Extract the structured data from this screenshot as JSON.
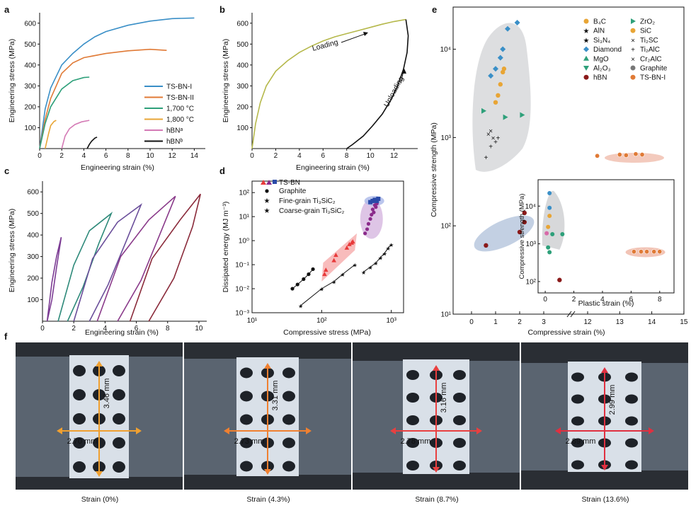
{
  "chart_data": [
    {
      "panel": "a",
      "type": "line",
      "xlabel": "Engineering strain (%)",
      "ylabel": "Engineering stress (MPa)",
      "xlim": [
        0,
        15
      ],
      "ylim": [
        0,
        650
      ],
      "xticks": [
        "0",
        "2",
        "4",
        "6",
        "8",
        "10",
        "12",
        "14"
      ],
      "yticks": [
        "100",
        "200",
        "300",
        "400",
        "500",
        "600"
      ],
      "legend_position": "center-right",
      "series": [
        {
          "name": "TS-BN-I",
          "color": "#3a8fc7",
          "x": [
            0,
            0.5,
            1,
            2,
            3,
            4,
            5,
            6,
            8,
            10,
            12,
            14
          ],
          "y": [
            0,
            190,
            290,
            400,
            455,
            500,
            535,
            560,
            590,
            610,
            622,
            625
          ]
        },
        {
          "name": "TS-BN-II",
          "color": "#e07a36",
          "x": [
            0,
            0.5,
            1,
            2,
            3,
            4,
            6,
            8,
            10,
            11.5
          ],
          "y": [
            0,
            140,
            240,
            360,
            410,
            435,
            455,
            468,
            475,
            470
          ]
        },
        {
          "name": "1,700 °C",
          "color": "#2ea07a",
          "x": [
            0,
            0.5,
            1,
            2,
            3,
            4,
            4.5
          ],
          "y": [
            0,
            120,
            200,
            285,
            325,
            340,
            342
          ]
        },
        {
          "name": "1,800 °C",
          "color": "#e8a535",
          "x": [
            0.5,
            0.8,
            1,
            1.3,
            1.5
          ],
          "y": [
            0,
            70,
            110,
            130,
            135
          ]
        },
        {
          "name": "hBNᵃ",
          "color": "#d47ab5",
          "x": [
            2,
            2.3,
            2.7,
            3.2,
            3.8,
            4.5
          ],
          "y": [
            0,
            60,
            95,
            115,
            128,
            135
          ]
        },
        {
          "name": "hBNᵇ",
          "color": "#111111",
          "x": [
            4.3,
            4.5,
            4.7,
            5,
            5.2
          ],
          "y": [
            0,
            20,
            35,
            50,
            55
          ]
        }
      ]
    },
    {
      "panel": "b",
      "type": "line",
      "xlabel": "Engineering strain (%)",
      "ylabel": "Engineering stress (MPa)",
      "xlim": [
        0,
        14
      ],
      "ylim": [
        0,
        650
      ],
      "xticks": [
        "0",
        "2",
        "4",
        "6",
        "8",
        "10",
        "12"
      ],
      "yticks": [
        "100",
        "200",
        "300",
        "400",
        "500",
        "600"
      ],
      "annotations": [
        "Loading",
        "Unloading"
      ],
      "series": [
        {
          "name": "",
          "color": "#b5b84a",
          "x": [
            0,
            0.3,
            0.7,
            1.2,
            2,
            3,
            4,
            5,
            6,
            7,
            8,
            9,
            10,
            11,
            12,
            13
          ],
          "y": [
            0,
            120,
            220,
            300,
            370,
            420,
            460,
            490,
            515,
            535,
            550,
            565,
            580,
            595,
            608,
            618
          ]
        },
        {
          "name": "",
          "color": "#111111",
          "x": [
            13,
            13.2,
            13.1,
            12.8,
            12.3,
            11.7,
            11,
            10.2,
            9.4,
            8.5,
            8
          ],
          "y": [
            618,
            540,
            460,
            380,
            300,
            230,
            165,
            110,
            60,
            20,
            0
          ]
        }
      ]
    },
    {
      "panel": "c",
      "type": "line",
      "xlabel": "Engineering strain (%)",
      "ylabel": "Engineering stress (MPa)",
      "xlim": [
        0,
        10.5
      ],
      "ylim": [
        0,
        650
      ],
      "xticks": [
        "0",
        "2",
        "4",
        "6",
        "8",
        "10"
      ],
      "yticks": [
        "100",
        "200",
        "300",
        "400",
        "500",
        "600"
      ],
      "series": [
        {
          "name": "",
          "color": "#7b3b93",
          "x": [
            0.3,
            0.6,
            0.9,
            1.2,
            0.9,
            0.6,
            0.3
          ],
          "y": [
            0,
            180,
            300,
            390,
            250,
            100,
            0
          ]
        },
        {
          "name": "",
          "color": "#2e8a7a",
          "x": [
            1.0,
            2.0,
            3.0,
            4.4,
            3.6,
            2.6,
            1.6
          ],
          "y": [
            0,
            260,
            420,
            500,
            360,
            160,
            0
          ]
        },
        {
          "name": "",
          "color": "#6a4e9a",
          "x": [
            2.0,
            3.2,
            4.8,
            6.3,
            5.4,
            4.2,
            3.0
          ],
          "y": [
            0,
            290,
            460,
            540,
            380,
            170,
            0
          ]
        },
        {
          "name": "",
          "color": "#8a3a8a",
          "x": [
            3.5,
            5.0,
            6.8,
            8.5,
            7.6,
            6.3,
            4.8
          ],
          "y": [
            0,
            300,
            470,
            580,
            420,
            190,
            0
          ]
        },
        {
          "name": "",
          "color": "#8a2a3a",
          "x": [
            5.6,
            7.0,
            8.8,
            10.1,
            9.6,
            8.4,
            6.8
          ],
          "y": [
            0,
            290,
            470,
            590,
            440,
            200,
            0
          ]
        }
      ]
    },
    {
      "panel": "d",
      "type": "scatter",
      "xlabel": "Compressive stress (MPa)",
      "ylabel": "Dissipated energy (MJ m⁻³)",
      "xscale": "log",
      "yscale": "log",
      "xlim": [
        10,
        1500
      ],
      "ylim": [
        0.001,
        300
      ],
      "xticks": [
        "10¹",
        "10²",
        "10³"
      ],
      "yticks": [
        "10⁻³",
        "10⁻²",
        "10⁻¹",
        "10⁰",
        "10¹",
        "10²"
      ],
      "legend": [
        "TS-BN",
        "Graphite",
        "Fine-grain Ti₃SiC₂",
        "Coarse-grain Ti₃SiC₂"
      ],
      "series": [
        {
          "name": "TS-BN",
          "color": "#e83a3a",
          "marker": "triangle",
          "x": [
            110,
            115,
            150,
            160,
            230,
            250,
            270,
            280
          ],
          "y": [
            0.04,
            0.06,
            0.15,
            0.25,
            0.5,
            0.7,
            0.8,
            0.9
          ]
        },
        {
          "name": "TS-BN",
          "color": "#8a2a8a",
          "marker": "circle",
          "x": [
            420,
            450,
            470,
            500,
            520,
            540,
            560,
            580,
            600,
            620
          ],
          "y": [
            2,
            3,
            5,
            8,
            12,
            20,
            15,
            30,
            25,
            35
          ]
        },
        {
          "name": "TS-BN",
          "color": "#2a4aa8",
          "marker": "square",
          "x": [
            500,
            540,
            580,
            620,
            650
          ],
          "y": [
            40,
            45,
            50,
            45,
            55
          ]
        },
        {
          "name": "Graphite",
          "color": "#111111",
          "marker": "circle",
          "x": [
            38,
            45,
            55,
            65,
            75
          ],
          "y": [
            0.01,
            0.015,
            0.025,
            0.04,
            0.065
          ]
        },
        {
          "name": "Fine-grain Ti₃SiC₂",
          "color": "#111111",
          "marker": "star",
          "x": [
            50,
            100,
            150,
            200,
            300
          ],
          "y": [
            0.002,
            0.01,
            0.02,
            0.04,
            0.1
          ]
        },
        {
          "name": "Coarse-grain Ti₃SiC₂",
          "color": "#111111",
          "marker": "star",
          "x": [
            400,
            500,
            600,
            700,
            800,
            900,
            1000
          ],
          "y": [
            0.05,
            0.08,
            0.12,
            0.2,
            0.3,
            0.5,
            0.7
          ]
        }
      ]
    },
    {
      "panel": "e",
      "type": "scatter",
      "xlabel": "Compressive strain (%)",
      "ylabel": "Compressive strength (MPa)",
      "yscale": "log",
      "xlim": [
        0,
        15
      ],
      "ylim": [
        10,
        30000
      ],
      "xticks": [
        "0",
        "1",
        "2",
        "3",
        "12",
        "13",
        "14",
        "15"
      ],
      "yticks": [
        "10¹",
        "10²",
        "10³",
        "10⁴"
      ],
      "legend": [
        "B₄C",
        "AlN",
        "Si₃N₄",
        "Diamond",
        "MgO",
        "Al₂O₃",
        "hBN",
        "ZrO₂",
        "SiC",
        "Ti₂SC",
        "Ti₂AlC",
        "Cr₂AlC",
        "Graphite",
        "TS-BN-I"
      ],
      "series": [
        {
          "name": "Diamond",
          "color": "#3a8fc7",
          "x": [
            0.8,
            1.0,
            1.2,
            1.3,
            1.5,
            1.9
          ],
          "y": [
            5000,
            6000,
            8000,
            10000,
            17000,
            20000
          ]
        },
        {
          "name": "B₄C",
          "color": "#e8a535",
          "x": [
            1.0,
            1.1,
            1.2,
            1.3,
            1.35
          ],
          "y": [
            2500,
            3000,
            4000,
            5500,
            6000
          ]
        },
        {
          "name": "ZrO₂",
          "color": "#2ea07a",
          "x": [
            0.5,
            1.4,
            2.1
          ],
          "y": [
            2000,
            1700,
            1800
          ]
        },
        {
          "name": "Ti₂AlC",
          "color": "#2ea07a",
          "x": [
            0.6,
            0.8,
            1.0,
            1.1
          ],
          "y": [
            600,
            800,
            900,
            1000
          ]
        },
        {
          "name": "Cr₂AlC",
          "color": "#555555",
          "x": [
            0.7,
            0.8,
            0.9
          ],
          "y": [
            1100,
            1200,
            1000
          ]
        },
        {
          "name": "hBN",
          "color": "#8a1a1a",
          "x": [
            0.6,
            2.0,
            2.2,
            2.2
          ],
          "y": [
            60,
            85,
            110,
            140
          ]
        },
        {
          "name": "TS-BN-I",
          "color": "#e07a36",
          "x": [
            12.3,
            13.0,
            13.2,
            13.5,
            13.7
          ],
          "y": [
            620,
            640,
            630,
            650,
            640
          ]
        }
      ],
      "inset": {
        "xlabel": "Plastic strain (%)",
        "ylabel": "Compressive strength (MPa)",
        "xlim": [
          -0.5,
          9
        ],
        "ylim": [
          50,
          50000
        ],
        "yscale": "log",
        "xticks": [
          "0",
          "2",
          "4",
          "6",
          "8"
        ],
        "yticks": [
          "10²",
          "10³",
          "10⁴"
        ]
      }
    }
  ],
  "panel_labels": [
    "a",
    "b",
    "c",
    "d",
    "e",
    "f"
  ],
  "photos": [
    {
      "caption": "Strain (0%)",
      "height": "3.46 mm",
      "width": "2.70 mm",
      "color": "#f0a030"
    },
    {
      "caption": "Strain (4.3%)",
      "height": "3.31 mm",
      "width": "2.73 mm",
      "color": "#f08030"
    },
    {
      "caption": "Strain (8.7%)",
      "height": "3.16 mm",
      "width": "2.78 mm",
      "color": "#e84040"
    },
    {
      "caption": "Strain (13.6%)",
      "height": "2.99 mm",
      "width": "2.89 mm",
      "color": "#e03040"
    }
  ]
}
